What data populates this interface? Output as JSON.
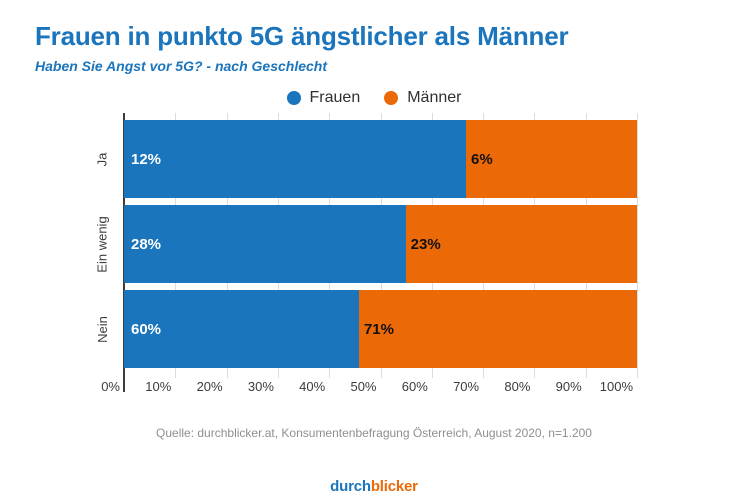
{
  "header": {
    "title": "Frauen in punkto 5G ängstlicher als Männer",
    "subtitle": "Haben Sie Angst vor 5G? - nach Geschlecht"
  },
  "chart_data": {
    "type": "bar",
    "subtype": "horizontal-100pct-stacked",
    "categories": [
      "Ja",
      "Ein wenig",
      "Nein"
    ],
    "series": [
      {
        "name": "Frauen",
        "color": "#1B75BC",
        "values": [
          12,
          28,
          60
        ]
      },
      {
        "name": "Männer",
        "color": "#EC6908",
        "values": [
          6,
          23,
          71
        ]
      }
    ],
    "value_suffix": "%",
    "x_tick_labels": [
      "0%",
      "10%",
      "20%",
      "30%",
      "40%",
      "50%",
      "60%",
      "70%",
      "80%",
      "90%",
      "100%"
    ],
    "xlim": [
      0,
      100
    ],
    "grid": true,
    "legend_position": "top-center",
    "bar_width_note": "each row is a full-width bar split proportionally between Frauen and Männer shares"
  },
  "footer": {
    "source": "Quelle: durchblicker.at, Konsumentenbefragung Österreich, August 2020, n=1.200",
    "logo": {
      "part1": "durch",
      "part2": "blicker"
    }
  },
  "colors": {
    "accent_blue": "#1B75BC",
    "accent_orange": "#EC6908",
    "axis_line": "#3C3C3C",
    "gridline": "#DCDCDC",
    "tick_text": "#3C3C3C",
    "source_text": "#8F8F8F",
    "background": "#FFFFFF"
  }
}
